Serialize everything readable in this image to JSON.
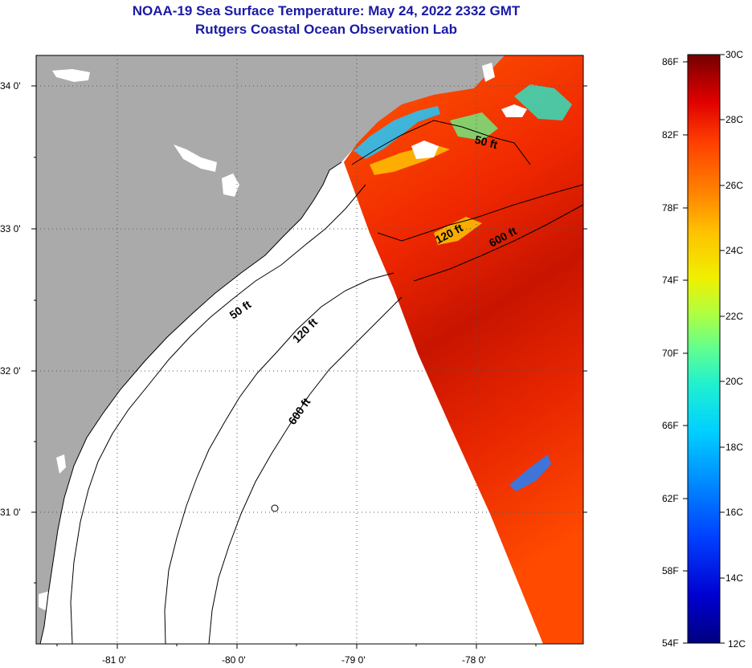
{
  "title": "NOAA-19 Sea Surface Temperature:  May 24, 2022 2332 GMT",
  "subtitle": "Rutgers Coastal Ocean Observation Lab",
  "lat_ticks": [
    {
      "value": 34,
      "label": "34 0'"
    },
    {
      "value": 33,
      "label": "33 0'"
    },
    {
      "value": 32,
      "label": "32 0'"
    },
    {
      "value": 31,
      "label": "31 0'"
    }
  ],
  "lon_ticks": [
    {
      "value": -81,
      "label": "-81 0'"
    },
    {
      "value": -80,
      "label": "-80 0'"
    },
    {
      "value": -79,
      "label": "-79 0'"
    },
    {
      "value": -78,
      "label": "-78 0'"
    }
  ],
  "contour_labels": [
    {
      "text": "50 ft"
    },
    {
      "text": "120 ft"
    },
    {
      "text": "600 ft"
    },
    {
      "text": "50 ft"
    },
    {
      "text": "120 ft"
    },
    {
      "text": "600 ft"
    }
  ],
  "colorbar": {
    "fahrenheit_labels": [
      "86F",
      "82F",
      "78F",
      "74F",
      "70F",
      "66F",
      "62F",
      "58F",
      "54F"
    ],
    "celsius_labels": [
      "30C",
      "28C",
      "26C",
      "24C",
      "22C",
      "20C",
      "18C",
      "16C",
      "14C",
      "12C"
    ],
    "colors": [
      "#000080",
      "#0000d0",
      "#0040ff",
      "#0090ff",
      "#00d0ff",
      "#20f0d0",
      "#60ff90",
      "#b0ff40",
      "#f0f000",
      "#ffc000",
      "#ff8000",
      "#ff4000",
      "#e00000",
      "#a00000",
      "#700000"
    ]
  },
  "colors": {
    "land": "#aaaaaa",
    "no_data": "#ffffff",
    "title": "#1a1aa6"
  }
}
